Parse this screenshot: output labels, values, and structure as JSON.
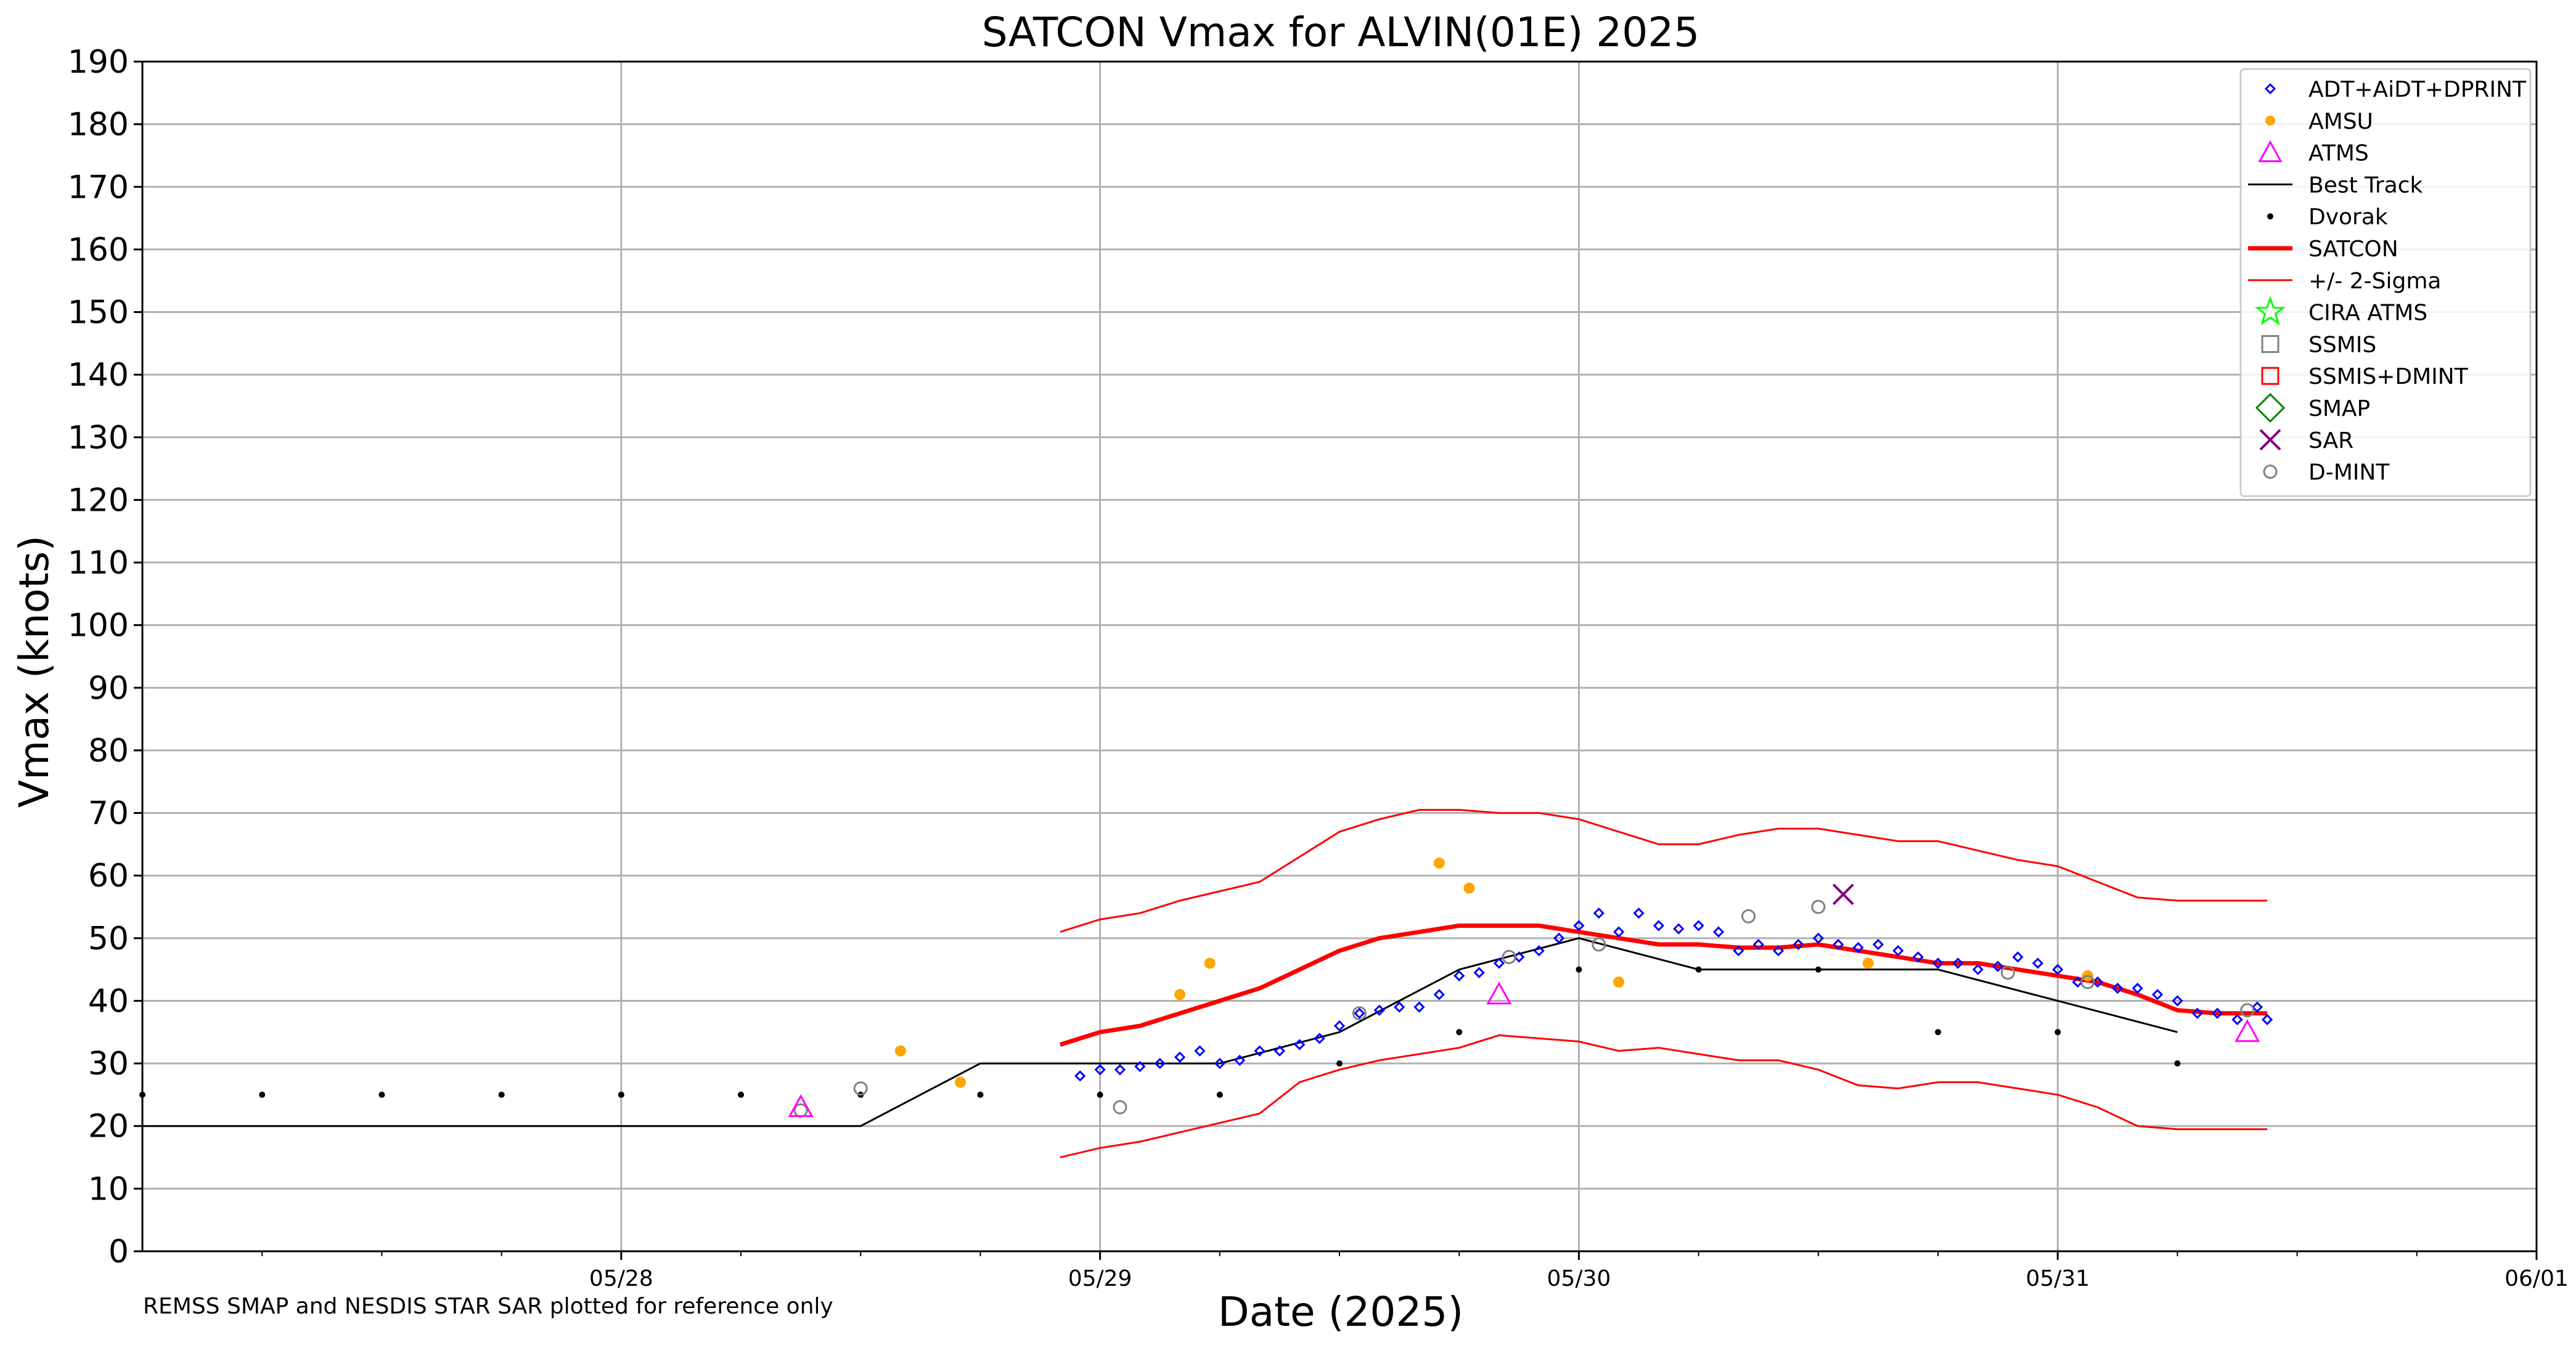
{
  "chart_data": {
    "type": "scatter",
    "title": "SATCON Vmax for ALVIN(01E) 2025",
    "xlabel": "Date (2025)",
    "ylabel": "Vmax (knots)",
    "xlim": [
      "05/27 00:00",
      "06/01 00:00"
    ],
    "ylim": [
      0,
      190
    ],
    "grid": true,
    "legend_position": "top-right",
    "footnote": "REMSS SMAP and NESDIS STAR SAR plotted for reference only",
    "x_ticks": [
      "05/28",
      "05/29",
      "05/30",
      "05/31",
      "06/01"
    ],
    "y_ticks": [
      0,
      10,
      20,
      30,
      40,
      50,
      60,
      70,
      80,
      90,
      100,
      110,
      120,
      130,
      140,
      150,
      160,
      170,
      180,
      190
    ],
    "legend": [
      {
        "label": "ADT+AiDT+DPRINT",
        "marker": "diamond-open",
        "color": "#0000ff"
      },
      {
        "label": "AMSU",
        "marker": "dot",
        "color": "#ffa500"
      },
      {
        "label": "ATMS",
        "marker": "triangle-open",
        "color": "#ff00ff"
      },
      {
        "label": "Best Track",
        "marker": "line",
        "color": "#000000"
      },
      {
        "label": "Dvorak",
        "marker": "small-dot",
        "color": "#000000"
      },
      {
        "label": "SATCON",
        "marker": "thick-line",
        "color": "#ff0000"
      },
      {
        "label": "+/- 2-Sigma",
        "marker": "line",
        "color": "#ff0000"
      },
      {
        "label": "CIRA ATMS",
        "marker": "star-open",
        "color": "#00ff00"
      },
      {
        "label": "SSMIS",
        "marker": "square-open",
        "color": "#808080"
      },
      {
        "label": "SSMIS+DMINT",
        "marker": "square-open",
        "color": "#ff0000"
      },
      {
        "label": "SMAP",
        "marker": "diamond-large-open",
        "color": "#008000"
      },
      {
        "label": "SAR",
        "marker": "x",
        "color": "#800080"
      },
      {
        "label": "D-MINT",
        "marker": "circle-open",
        "color": "#808080"
      }
    ],
    "series": [
      {
        "name": "Best Track",
        "x": [
          "05/27 00:00",
          "05/28 12:00",
          "05/28 18:00",
          "05/29 06:00",
          "05/29 12:00",
          "05/29 18:00",
          "05/30 00:00",
          "05/30 06:00",
          "05/30 18:00",
          "05/31 00:00",
          "05/31 06:00"
        ],
        "y": [
          20,
          20,
          30,
          30,
          35,
          45,
          50,
          45,
          45,
          40,
          35
        ]
      },
      {
        "name": "Dvorak",
        "x": [
          "05/27 00:00",
          "05/27 06:00",
          "05/27 12:00",
          "05/27 18:00",
          "05/28 00:00",
          "05/28 06:00",
          "05/28 12:00",
          "05/28 18:00",
          "05/29 00:00",
          "05/29 06:00",
          "05/29 12:00",
          "05/29 18:00",
          "05/30 00:00",
          "05/30 06:00",
          "05/30 12:00",
          "05/30 18:00",
          "05/31 00:00",
          "05/31 06:00"
        ],
        "y": [
          25,
          25,
          25,
          25,
          25,
          25,
          25,
          25,
          25,
          25,
          30,
          35,
          45,
          45,
          45,
          35,
          35,
          30
        ]
      },
      {
        "name": "AMSU",
        "x": [
          "05/28 14:00",
          "05/28 17:00",
          "05/29 04:00",
          "05/29 05:30",
          "05/29 17:00",
          "05/29 18:30",
          "05/30 02:00",
          "05/30 14:30",
          "05/31 01:30"
        ],
        "y": [
          32,
          27,
          41,
          46,
          62,
          58,
          43,
          46,
          44
        ]
      },
      {
        "name": "ATMS",
        "x": [
          "05/28 09:00",
          "05/29 20:00",
          "05/31 09:30"
        ],
        "y": [
          23,
          41,
          35
        ]
      },
      {
        "name": "D-MINT",
        "x": [
          "05/28 09:00",
          "05/28 12:00",
          "05/29 01:00",
          "05/29 13:00",
          "05/29 20:30",
          "05/30 01:00",
          "05/30 08:30",
          "05/30 12:00",
          "05/30 21:30",
          "05/31 01:30",
          "05/31 09:30"
        ],
        "y": [
          22.5,
          26,
          23,
          38,
          47,
          49,
          53.5,
          55,
          44.5,
          43,
          38.5
        ]
      },
      {
        "name": "SAR",
        "x": [
          "05/30 13:15"
        ],
        "y": [
          57
        ]
      },
      {
        "name": "SATCON",
        "x": [
          "05/28 22:00",
          "05/29 00:00",
          "05/29 02:00",
          "05/29 04:00",
          "05/29 06:00",
          "05/29 08:00",
          "05/29 10:00",
          "05/29 12:00",
          "05/29 14:00",
          "05/29 16:00",
          "05/29 18:00",
          "05/29 20:00",
          "05/29 22:00",
          "05/30 00:00",
          "05/30 02:00",
          "05/30 04:00",
          "05/30 06:00",
          "05/30 08:00",
          "05/30 10:00",
          "05/30 12:00",
          "05/30 14:00",
          "05/30 16:00",
          "05/30 18:00",
          "05/30 20:00",
          "05/30 22:00",
          "05/31 00:00",
          "05/31 02:00",
          "05/31 04:00",
          "05/31 06:00",
          "05/31 08:00",
          "05/31 10:30"
        ],
        "y": [
          33,
          35,
          36,
          38,
          40,
          42,
          45,
          48,
          50,
          51,
          52,
          52,
          52,
          51,
          50,
          49,
          49,
          48.5,
          48.5,
          49,
          48,
          47,
          46,
          46,
          45,
          44,
          43,
          41,
          38.5,
          38,
          38
        ]
      },
      {
        "name": "SATCON +2 Sigma",
        "x": [
          "05/28 22:00",
          "05/29 00:00",
          "05/29 02:00",
          "05/29 04:00",
          "05/29 06:00",
          "05/29 08:00",
          "05/29 10:00",
          "05/29 12:00",
          "05/29 14:00",
          "05/29 16:00",
          "05/29 18:00",
          "05/29 20:00",
          "05/29 22:00",
          "05/30 00:00",
          "05/30 02:00",
          "05/30 04:00",
          "05/30 06:00",
          "05/30 08:00",
          "05/30 10:00",
          "05/30 12:00",
          "05/30 14:00",
          "05/30 16:00",
          "05/30 18:00",
          "05/30 20:00",
          "05/30 22:00",
          "05/31 00:00",
          "05/31 02:00",
          "05/31 04:00",
          "05/31 06:00",
          "05/31 08:00",
          "05/31 10:30"
        ],
        "y": [
          51,
          53,
          54,
          56,
          57.5,
          59,
          63,
          67,
          69,
          70.5,
          70.5,
          70,
          70,
          69,
          67,
          65,
          65,
          66.5,
          67.5,
          67.5,
          66.5,
          65.5,
          65.5,
          64,
          62.5,
          61.5,
          59,
          56.5,
          56,
          56,
          56
        ]
      },
      {
        "name": "SATCON -2 Sigma",
        "x": [
          "05/28 22:00",
          "05/29 00:00",
          "05/29 02:00",
          "05/29 04:00",
          "05/29 06:00",
          "05/29 08:00",
          "05/29 10:00",
          "05/29 12:00",
          "05/29 14:00",
          "05/29 16:00",
          "05/29 18:00",
          "05/29 20:00",
          "05/29 22:00",
          "05/30 00:00",
          "05/30 02:00",
          "05/30 04:00",
          "05/30 06:00",
          "05/30 08:00",
          "05/30 10:00",
          "05/30 12:00",
          "05/30 14:00",
          "05/30 16:00",
          "05/30 18:00",
          "05/30 20:00",
          "05/30 22:00",
          "05/31 00:00",
          "05/31 02:00",
          "05/31 04:00",
          "05/31 06:00",
          "05/31 08:00",
          "05/31 10:30"
        ],
        "y": [
          15,
          16.5,
          17.5,
          19,
          20.5,
          22,
          27,
          29,
          30.5,
          31.5,
          32.5,
          34.5,
          34,
          33.5,
          32,
          32.5,
          31.5,
          30.5,
          30.5,
          29,
          26.5,
          26,
          27,
          27,
          26,
          25,
          23,
          20,
          19.5,
          19.5,
          19.5
        ]
      },
      {
        "name": "ADT+AiDT+DPRINT",
        "x": [
          "05/28 23:00",
          "05/29 00:00",
          "05/29 01:00",
          "05/29 02:00",
          "05/29 03:00",
          "05/29 04:00",
          "05/29 05:00",
          "05/29 06:00",
          "05/29 07:00",
          "05/29 08:00",
          "05/29 09:00",
          "05/29 10:00",
          "05/29 11:00",
          "05/29 12:00",
          "05/29 13:00",
          "05/29 14:00",
          "05/29 15:00",
          "05/29 16:00",
          "05/29 17:00",
          "05/29 18:00",
          "05/29 19:00",
          "05/29 20:00",
          "05/29 21:00",
          "05/29 22:00",
          "05/29 23:00",
          "05/30 00:00",
          "05/30 01:00",
          "05/30 02:00",
          "05/30 03:00",
          "05/30 04:00",
          "05/30 05:00",
          "05/30 06:00",
          "05/30 07:00",
          "05/30 08:00",
          "05/30 09:00",
          "05/30 10:00",
          "05/30 11:00",
          "05/30 12:00",
          "05/30 13:00",
          "05/30 14:00",
          "05/30 15:00",
          "05/30 16:00",
          "05/30 17:00",
          "05/30 18:00",
          "05/30 19:00",
          "05/30 20:00",
          "05/30 21:00",
          "05/30 22:00",
          "05/30 23:00",
          "05/31 00:00",
          "05/31 01:00",
          "05/31 02:00",
          "05/31 03:00",
          "05/31 04:00",
          "05/31 05:00",
          "05/31 06:00",
          "05/31 07:00",
          "05/31 08:00",
          "05/31 09:00",
          "05/31 10:00",
          "05/31 10:30"
        ],
        "y": [
          28,
          29,
          29,
          29.5,
          30,
          31,
          32,
          30,
          30.5,
          32,
          32,
          33,
          34,
          36,
          38,
          38.5,
          39,
          39,
          41,
          44,
          44.5,
          46,
          47,
          48,
          50,
          52,
          54,
          51,
          54,
          52,
          51.5,
          52,
          51,
          48,
          49,
          48,
          49,
          50,
          49,
          48.5,
          49,
          48,
          47,
          46,
          46,
          45,
          45.5,
          47,
          46,
          45,
          43,
          43,
          42,
          42,
          41,
          40,
          38,
          38,
          37,
          39,
          37
        ]
      }
    ]
  }
}
